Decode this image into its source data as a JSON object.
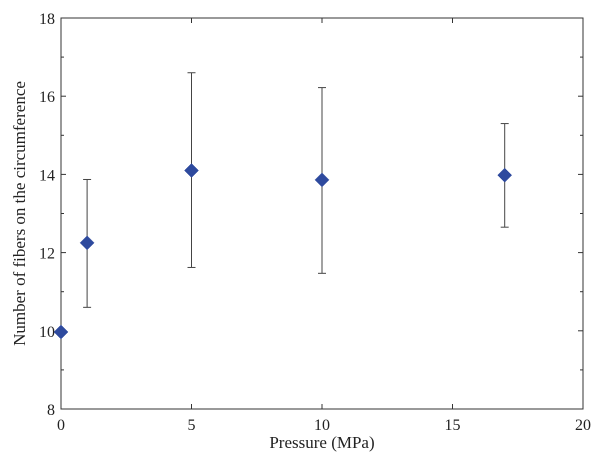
{
  "chart_data": {
    "type": "scatter",
    "xlabel": "Pressure (MPa)",
    "ylabel": "Number of fibers on the circumference",
    "xlim": [
      0,
      20
    ],
    "ylim": [
      8,
      18
    ],
    "xticks": [
      0,
      5,
      10,
      15,
      20
    ],
    "yticks": [
      8,
      10,
      12,
      14,
      16,
      18
    ],
    "grid": false,
    "marker": "diamond",
    "marker_color": "#2e4a9e",
    "errorbar_color": "#444444",
    "points": [
      {
        "x": 0,
        "y": 9.97,
        "ylow": null,
        "yhigh": null
      },
      {
        "x": 1,
        "y": 12.25,
        "ylow": 10.6,
        "yhigh": 13.87
      },
      {
        "x": 5,
        "y": 14.1,
        "ylow": 11.62,
        "yhigh": 16.6
      },
      {
        "x": 10,
        "y": 13.86,
        "ylow": 11.47,
        "yhigh": 16.22
      },
      {
        "x": 17,
        "y": 13.98,
        "ylow": 12.65,
        "yhigh": 15.3
      }
    ]
  }
}
